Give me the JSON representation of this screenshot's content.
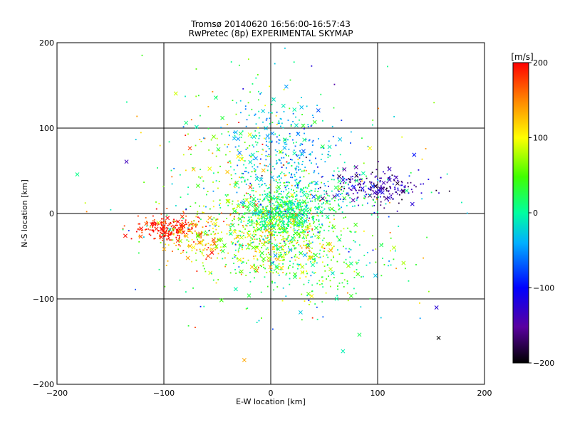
{
  "chart_data": {
    "type": "scatter",
    "title": "Tromsø 20140620 16:56:00-16:57:43",
    "subtitle": "RwPretec (8p) EXPERIMENTAL SKYMAP",
    "xlabel": "E-W location [km]",
    "ylabel": "N-S location [km]",
    "xlim": [
      -200,
      200
    ],
    "ylim": [
      -200,
      200
    ],
    "xticks": [
      "−200",
      "−100",
      "0",
      "100",
      "200"
    ],
    "yticks": [
      "200",
      "100",
      "0",
      "−100",
      "−200"
    ],
    "grid_lines_x": [
      -100,
      0,
      100
    ],
    "grid_lines_y": [
      -100,
      0,
      100
    ],
    "colorbar": {
      "unit": "[m/s]",
      "range": [
        -200,
        200
      ],
      "ticks": [
        "200",
        "100",
        "0",
        "−100",
        "−200"
      ],
      "colormap": "rainbow: black → purple → blue → cyan → green → yellow → red"
    },
    "marker_types": [
      "dot",
      "cross"
    ],
    "clusters": [
      {
        "cx": 12,
        "cy": 0,
        "sx": 18,
        "sy": 14,
        "v": 10,
        "vs": 25,
        "n": 550
      },
      {
        "cx": 5,
        "cy": -30,
        "sx": 28,
        "sy": 22,
        "v": 80,
        "vs": 40,
        "n": 450
      },
      {
        "cx": -95,
        "cy": -18,
        "sx": 14,
        "sy": 7,
        "v": 190,
        "vs": 15,
        "n": 220
      },
      {
        "cx": -60,
        "cy": -28,
        "sx": 22,
        "sy": 14,
        "v": 120,
        "vs": 40,
        "n": 150
      },
      {
        "cx": 95,
        "cy": 32,
        "sx": 22,
        "sy": 9,
        "v": -140,
        "vs": 30,
        "n": 220
      },
      {
        "cx": 15,
        "cy": 75,
        "sx": 25,
        "sy": 30,
        "v": -35,
        "vs": 30,
        "n": 260
      },
      {
        "cx": 40,
        "cy": 20,
        "sx": 30,
        "sy": 18,
        "v": 10,
        "vs": 30,
        "n": 200
      },
      {
        "cx": -30,
        "cy": 50,
        "sx": 40,
        "sy": 60,
        "v": 40,
        "vs": 60,
        "n": 260
      },
      {
        "cx": 40,
        "cy": -60,
        "sx": 38,
        "sy": 25,
        "v": 20,
        "vs": 40,
        "n": 220
      },
      {
        "cx": 0,
        "cy": 0,
        "sx": 80,
        "sy": 70,
        "v": 30,
        "vs": 90,
        "n": 220
      }
    ]
  }
}
